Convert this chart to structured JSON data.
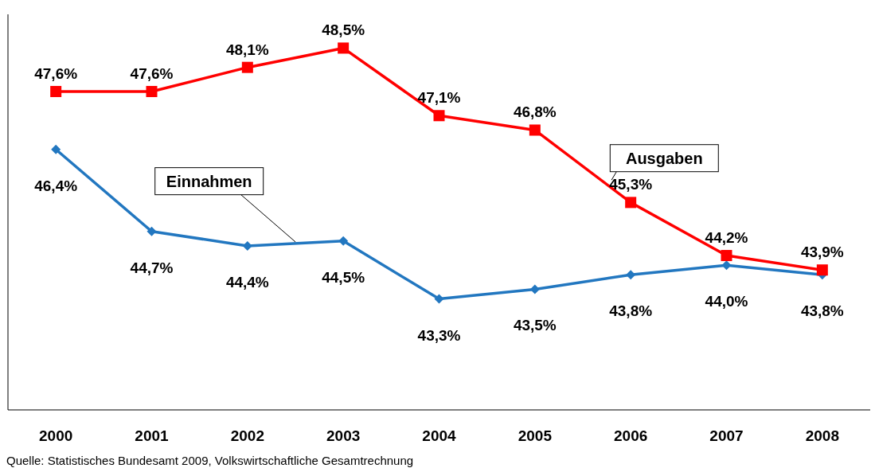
{
  "chart_data": {
    "type": "line",
    "categories": [
      "2000",
      "2001",
      "2002",
      "2003",
      "2004",
      "2005",
      "2006",
      "2007",
      "2008"
    ],
    "series": [
      {
        "name": "Einnahmen",
        "color": "#2277c0",
        "marker": "diamond",
        "values": [
          46.4,
          44.7,
          44.4,
          44.5,
          43.3,
          43.5,
          43.8,
          44.0,
          43.8
        ],
        "value_labels": [
          "46,4%",
          "44,7%",
          "44,4%",
          "44,5%",
          "43,3%",
          "43,5%",
          "43,8%",
          "44,0%",
          "43,8%"
        ]
      },
      {
        "name": "Ausgaben",
        "color": "#ff0000",
        "marker": "square",
        "values": [
          47.6,
          47.6,
          48.1,
          48.5,
          47.1,
          46.8,
          45.3,
          44.2,
          43.9
        ],
        "value_labels": [
          "47,6%",
          "47,6%",
          "48,1%",
          "48,5%",
          "47,1%",
          "46,8%",
          "45,3%",
          "44,2%",
          "43,9%"
        ]
      }
    ],
    "relative": false,
    "legend": false,
    "grid": false,
    "tick_labels": "x",
    "annotations": [
      "Quelle: Statistisches Bundesamt 2009, Volkswirtschaftliche Gesamtrechnung"
    ]
  }
}
